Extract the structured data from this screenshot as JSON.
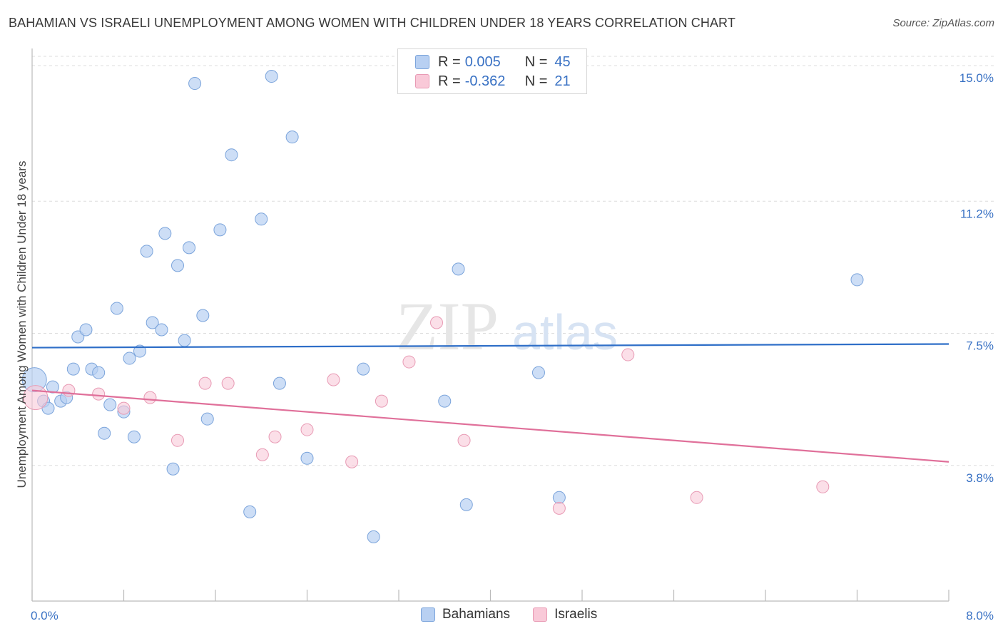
{
  "title": "BAHAMIAN VS ISRAELI UNEMPLOYMENT AMONG WOMEN WITH CHILDREN UNDER 18 YEARS CORRELATION CHART",
  "source": "Source: ZipAtlas.com",
  "watermark": {
    "zip": "ZIP",
    "atlas": "atlas"
  },
  "legend": {
    "rows": [
      {
        "r_label": "R =",
        "r_value": "0.005",
        "n_label": "N =",
        "n_value": "45"
      },
      {
        "r_label": "R =",
        "r_value": "-0.362",
        "n_label": "N =",
        "n_value": "21"
      }
    ]
  },
  "bottom_legend": {
    "series1": "Bahamians",
    "series2": "Israelis"
  },
  "colors": {
    "blue_fill": "#b8d0f2",
    "blue_stroke": "#7ba4db",
    "blue_line": "#2f6fc8",
    "pink_fill": "#f9c9d8",
    "pink_stroke": "#e89ab4",
    "pink_line": "#e0709a",
    "tick_label": "#3a72c4",
    "grid": "#dddddd"
  },
  "chart_data": {
    "type": "scatter",
    "title": "BAHAMIAN VS ISRAELI UNEMPLOYMENT AMONG WOMEN WITH CHILDREN UNDER 18 YEARS CORRELATION CHART",
    "xlabel": "",
    "ylabel": "Unemployment Among Women with Children Under 18 years",
    "xlim": [
      0.0,
      8.0
    ],
    "ylim": [
      0.0,
      15.4
    ],
    "x_tick_labels": [
      "0.0%",
      "8.0%"
    ],
    "y_ticks": [
      3.8,
      7.5,
      11.2,
      15.0
    ],
    "y_tick_labels": [
      "3.8%",
      "7.5%",
      "11.2%",
      "15.0%"
    ],
    "grid": true,
    "series": [
      {
        "name": "Bahamians",
        "r": 0.005,
        "n": 45,
        "trend": {
          "x": [
            0.0,
            8.0
          ],
          "y": [
            7.1,
            7.2
          ]
        },
        "points": [
          {
            "x": 0.02,
            "y": 6.2,
            "big": true
          },
          {
            "x": 0.1,
            "y": 5.6
          },
          {
            "x": 0.14,
            "y": 5.4
          },
          {
            "x": 0.18,
            "y": 6.0
          },
          {
            "x": 0.25,
            "y": 5.6
          },
          {
            "x": 0.3,
            "y": 5.7
          },
          {
            "x": 0.36,
            "y": 6.5
          },
          {
            "x": 0.4,
            "y": 7.4
          },
          {
            "x": 0.47,
            "y": 7.6
          },
          {
            "x": 0.52,
            "y": 6.5
          },
          {
            "x": 0.58,
            "y": 6.4
          },
          {
            "x": 0.63,
            "y": 4.7
          },
          {
            "x": 0.68,
            "y": 5.5
          },
          {
            "x": 0.74,
            "y": 8.2
          },
          {
            "x": 0.8,
            "y": 5.3
          },
          {
            "x": 0.85,
            "y": 6.8
          },
          {
            "x": 0.89,
            "y": 4.6
          },
          {
            "x": 0.94,
            "y": 7.0
          },
          {
            "x": 1.0,
            "y": 9.8
          },
          {
            "x": 1.05,
            "y": 7.8
          },
          {
            "x": 1.13,
            "y": 7.6
          },
          {
            "x": 1.16,
            "y": 10.3
          },
          {
            "x": 1.23,
            "y": 3.7
          },
          {
            "x": 1.27,
            "y": 9.4
          },
          {
            "x": 1.33,
            "y": 7.3
          },
          {
            "x": 1.37,
            "y": 9.9
          },
          {
            "x": 1.42,
            "y": 14.5
          },
          {
            "x": 1.49,
            "y": 8.0
          },
          {
            "x": 1.53,
            "y": 5.1
          },
          {
            "x": 1.64,
            "y": 10.4
          },
          {
            "x": 1.74,
            "y": 12.5
          },
          {
            "x": 1.9,
            "y": 2.5
          },
          {
            "x": 2.0,
            "y": 10.7
          },
          {
            "x": 2.09,
            "y": 14.7
          },
          {
            "x": 2.16,
            "y": 6.1
          },
          {
            "x": 2.27,
            "y": 13.0
          },
          {
            "x": 2.4,
            "y": 4.0
          },
          {
            "x": 2.89,
            "y": 6.5
          },
          {
            "x": 2.98,
            "y": 1.8
          },
          {
            "x": 3.6,
            "y": 5.6
          },
          {
            "x": 3.72,
            "y": 9.3
          },
          {
            "x": 3.79,
            "y": 2.7
          },
          {
            "x": 4.42,
            "y": 6.4
          },
          {
            "x": 4.6,
            "y": 2.9
          },
          {
            "x": 7.2,
            "y": 9.0
          }
        ]
      },
      {
        "name": "Israelis",
        "r": -0.362,
        "n": 21,
        "trend": {
          "x": [
            0.0,
            8.0
          ],
          "y": [
            5.9,
            3.9
          ]
        },
        "points": [
          {
            "x": 0.03,
            "y": 5.7,
            "big": true
          },
          {
            "x": 0.32,
            "y": 5.9
          },
          {
            "x": 0.58,
            "y": 5.8
          },
          {
            "x": 0.8,
            "y": 5.4
          },
          {
            "x": 1.03,
            "y": 5.7
          },
          {
            "x": 1.27,
            "y": 4.5
          },
          {
            "x": 1.51,
            "y": 6.1
          },
          {
            "x": 1.71,
            "y": 6.1
          },
          {
            "x": 2.01,
            "y": 4.1
          },
          {
            "x": 2.12,
            "y": 4.6
          },
          {
            "x": 2.4,
            "y": 4.8
          },
          {
            "x": 2.63,
            "y": 6.2
          },
          {
            "x": 2.79,
            "y": 3.9
          },
          {
            "x": 3.05,
            "y": 5.6
          },
          {
            "x": 3.29,
            "y": 6.7
          },
          {
            "x": 3.53,
            "y": 7.8
          },
          {
            "x": 3.77,
            "y": 4.5
          },
          {
            "x": 4.6,
            "y": 2.6
          },
          {
            "x": 5.2,
            "y": 6.9
          },
          {
            "x": 5.8,
            "y": 2.9
          },
          {
            "x": 6.9,
            "y": 3.2
          }
        ]
      }
    ]
  }
}
